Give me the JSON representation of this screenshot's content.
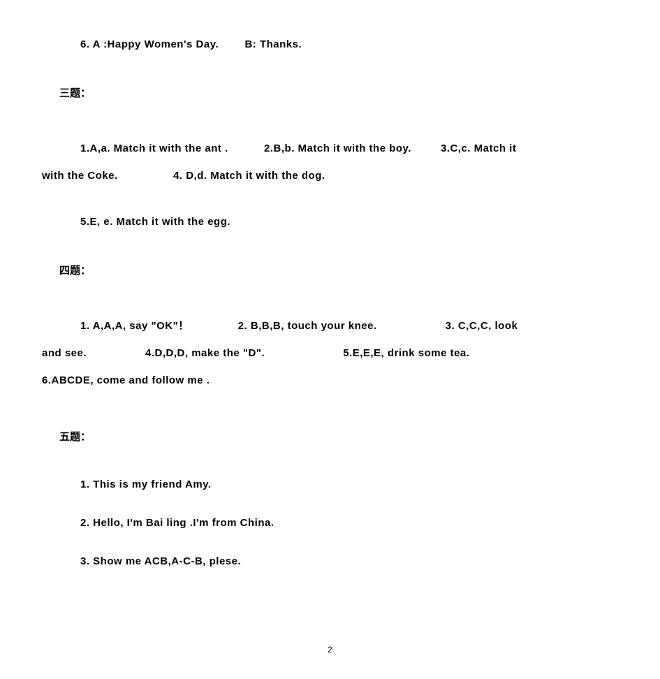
{
  "line_top": {
    "item6": "6. A :Happy Women's Day.",
    "item6b": "B: Thanks."
  },
  "section3": {
    "heading": "三题：",
    "part1": "1.A,a.  Match  it  with  the  ant .",
    "part2": "2.B,b.  Match  it  with  the  boy.",
    "part3_a": "3.C,c.  Match  it",
    "part3_b": "with  the  Coke.",
    "part4": "4.  D,d.  Match  it  with  the  dog.",
    "part5": "5.E,  e.  Match  it  with  the  egg."
  },
  "section4": {
    "heading": "四题：",
    "part1": "1.  A,A,A,  say  \"OK\"！",
    "part2": "2.  B,B,B,  touch  your  knee.",
    "part3_a": "3.  C,C,C,  look",
    "part3_b": "and   see.",
    "part4": "4.D,D,D,   make   the   \"D\".",
    "part5": "5.E,E,E,   drink    some    tea.",
    "part6": "6.ABCDE,  come    and   follow   me ."
  },
  "section5": {
    "heading": "五题：",
    "item1": "1. This  is  my  friend  Amy.",
    "item2": "2. Hello,  I'm  Bai  ling .I'm  from  China.",
    "item3": "3. Show  me  ACB,A-C-B,  plese."
  },
  "page_number": "2"
}
